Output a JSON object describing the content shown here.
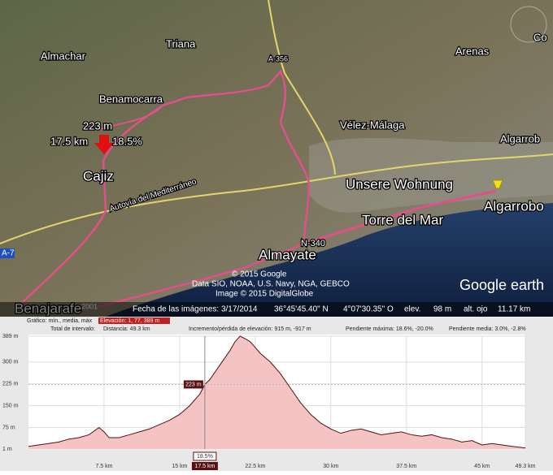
{
  "map": {
    "labels": [
      "Almachar",
      "Triana",
      "A-356",
      "Arenas",
      "Benamocarra",
      "Vélez-Málaga",
      "223 m",
      "17.5 km",
      "18.5%",
      "Cajiz",
      "Autovía del Mediterráneo",
      "Algarrob",
      "Unsere Wohnung",
      "Algarrobo",
      "Torre del Mar",
      "N-340",
      "Almayate",
      "© 2015 Google",
      "Data SIO, NOAA, U.S. Navy, NGA, GEBCO",
      "Image © 2015 DigitalGlobe",
      "Google earth",
      "Benajarafe",
      "Co",
      "A-7",
      "2001"
    ]
  },
  "status_bar": {
    "imagery_date": "Fecha de las imágenes: 3/17/2014",
    "latitude": "36°45'45.40\" N",
    "longitude": "4°07'30.35\" O",
    "elev_label": "elev.",
    "elev_value": "98 m",
    "eye_label": "alt. ojo",
    "eye_value": "11.17 km"
  },
  "profile": {
    "graph_label": "Gráfico: mín., media, máx",
    "elevation": "Elevación: 1, 77, 389 m",
    "range_label": "Total de intervalo:",
    "distance": "Distancia: 49.3 km",
    "gain_loss": "Incremento/pérdida de elevación: 915 m, -917 m",
    "max_slope": "Pendiente máxima: 18.6%, -20.0%",
    "mean_slope": "Pendiente media: 3.0%, -2.8%"
  },
  "chart_data": {
    "type": "area",
    "color": "#f4c4c4",
    "line_color": "#5a1010",
    "x": [
      0,
      1,
      2,
      3,
      4,
      5,
      6,
      7,
      7.5,
      8,
      9,
      10,
      11,
      12,
      13,
      14,
      15,
      16,
      17,
      17.5,
      18,
      19,
      20,
      20.5,
      21,
      21.5,
      22,
      23,
      24,
      25,
      26,
      27,
      28,
      29,
      30,
      31,
      32,
      33,
      34,
      35,
      36,
      37,
      38,
      39,
      40,
      41,
      42,
      43,
      44,
      45,
      46,
      47,
      48,
      49.3
    ],
    "values": [
      10,
      15,
      20,
      25,
      35,
      40,
      50,
      75,
      60,
      40,
      40,
      50,
      60,
      70,
      85,
      100,
      120,
      150,
      190,
      223,
      240,
      290,
      340,
      370,
      389,
      380,
      370,
      330,
      300,
      260,
      210,
      160,
      120,
      90,
      70,
      55,
      65,
      70,
      60,
      50,
      55,
      60,
      50,
      45,
      50,
      40,
      35,
      25,
      30,
      15,
      20,
      15,
      10,
      5
    ],
    "xlim": [
      0,
      49.3
    ],
    "ylim": [
      1,
      389
    ],
    "xticks": [
      {
        "value": 7.5,
        "label": "7.5 km"
      },
      {
        "value": 15,
        "label": "15 km"
      },
      {
        "value": 22.5,
        "label": "22.5 km"
      },
      {
        "value": 30,
        "label": "30 km"
      },
      {
        "value": 37.5,
        "label": "37.5 km"
      },
      {
        "value": 45,
        "label": "45 km"
      },
      {
        "value": 49.3,
        "label": "49.3 km"
      }
    ],
    "yticks": [
      {
        "value": 1,
        "label": "1 m"
      },
      {
        "value": 75,
        "label": "75 m"
      },
      {
        "value": 150,
        "label": "150 m"
      },
      {
        "value": 225,
        "label": "225 m"
      },
      {
        "value": 300,
        "label": "300 m"
      },
      {
        "value": 389,
        "label": "389 m"
      }
    ],
    "cursor": {
      "x": {
        "value": 17.5,
        "label": "17.5 km"
      },
      "y": {
        "value": 223,
        "label": "223 m"
      },
      "slope": "18.5%"
    }
  }
}
